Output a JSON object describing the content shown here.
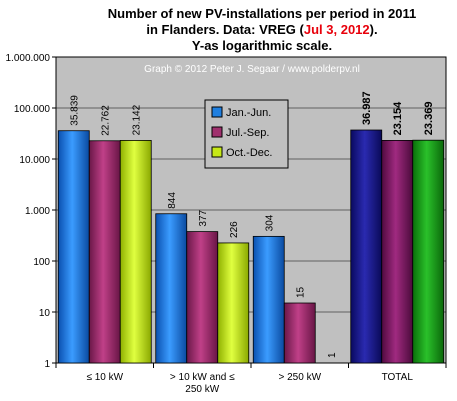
{
  "chart_data": {
    "type": "bar",
    "title_lines": [
      "Number of new PV-installations per period in 2011",
      "in Flanders. Data: VREG ({date})."
    ],
    "title_date": "Jul 3, 2012",
    "subtitle": "Y-as logarithmic  scale.",
    "credit": "Graph © 2012 Peter J. Segaar / www.polderpv.nl",
    "categories": [
      "≤ 10 kW",
      "> 10 kW and ≤\n250 kW",
      "> 250 kW",
      "TOTAL"
    ],
    "y_scale": "log",
    "ylim": [
      1,
      1000000
    ],
    "y_tick_labels": [
      "1",
      "10",
      "100",
      "1.000",
      "10.000",
      "100.000",
      "1.000.000"
    ],
    "series": [
      {
        "name": "Jan.-Jun.",
        "values": [
          35839,
          844,
          304,
          null
        ],
        "labels": [
          "35.839",
          "844",
          "304",
          ""
        ]
      },
      {
        "name": "Jul.-Sep.",
        "values": [
          22762,
          377,
          15,
          null
        ],
        "labels": [
          "22.762",
          "377",
          "15",
          ""
        ]
      },
      {
        "name": "Oct.-Dec.",
        "values": [
          23142,
          226,
          1,
          null
        ],
        "labels": [
          "23.142",
          "226",
          "1",
          ""
        ]
      }
    ],
    "totals": {
      "values": [
        36987,
        23154,
        23369
      ],
      "labels": [
        "36.987",
        "23.154",
        "23.369"
      ]
    },
    "legend_placement": "center",
    "grid": true,
    "colors": {
      "jan_jun": "#1f7fe0",
      "jul_sep": "#a0306e",
      "oct_dec": "#c6e817",
      "total_1": "#1a1a8c",
      "total_2": "#8a1a6a",
      "total_3": "#1aa01a",
      "plot_bg": "#c0c0c0"
    }
  }
}
